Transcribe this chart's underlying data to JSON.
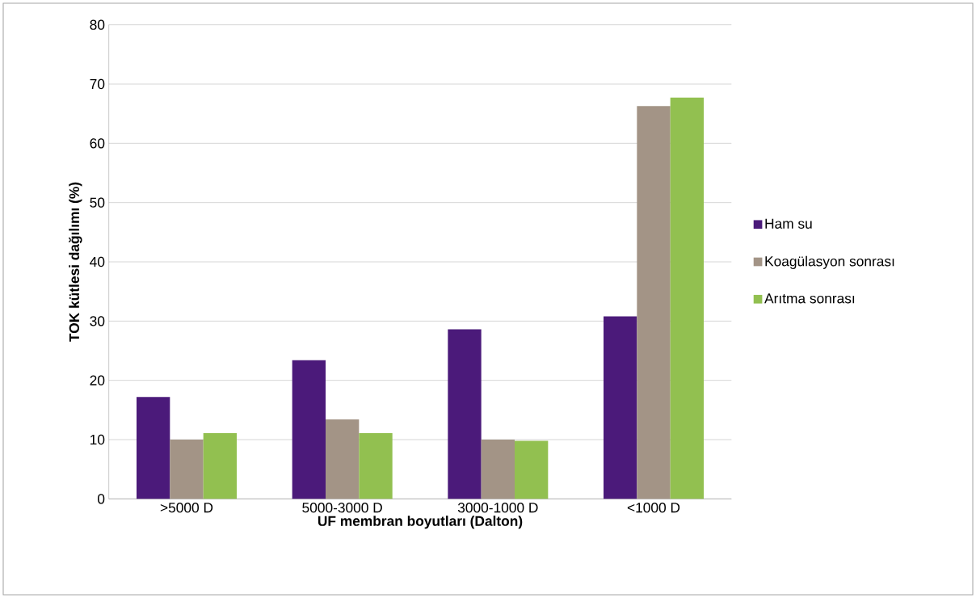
{
  "chart_data": {
    "type": "bar",
    "xlabel": "UF membran boyutları (Dalton)",
    "ylabel": "TOK kütlesi dağılımı (%)",
    "categories": [
      ">5000 D",
      "5000-3000 D",
      "3000-1000 D",
      "<1000 D"
    ],
    "series": [
      {
        "name": "Ham su",
        "color": "#4b1a7a",
        "values": [
          17.2,
          23.4,
          28.6,
          30.8
        ]
      },
      {
        "name": "Koagülasyon sonrası",
        "color": "#a39486",
        "values": [
          10.0,
          13.4,
          10.0,
          66.3
        ]
      },
      {
        "name": "Arıtma sonrası",
        "color": "#92c050",
        "values": [
          11.1,
          11.1,
          9.8,
          67.7
        ]
      }
    ],
    "ylim": [
      0,
      80
    ],
    "yticks": [
      0,
      10,
      20,
      30,
      40,
      50,
      60,
      70,
      80
    ],
    "grid": "y",
    "legend": "right"
  }
}
